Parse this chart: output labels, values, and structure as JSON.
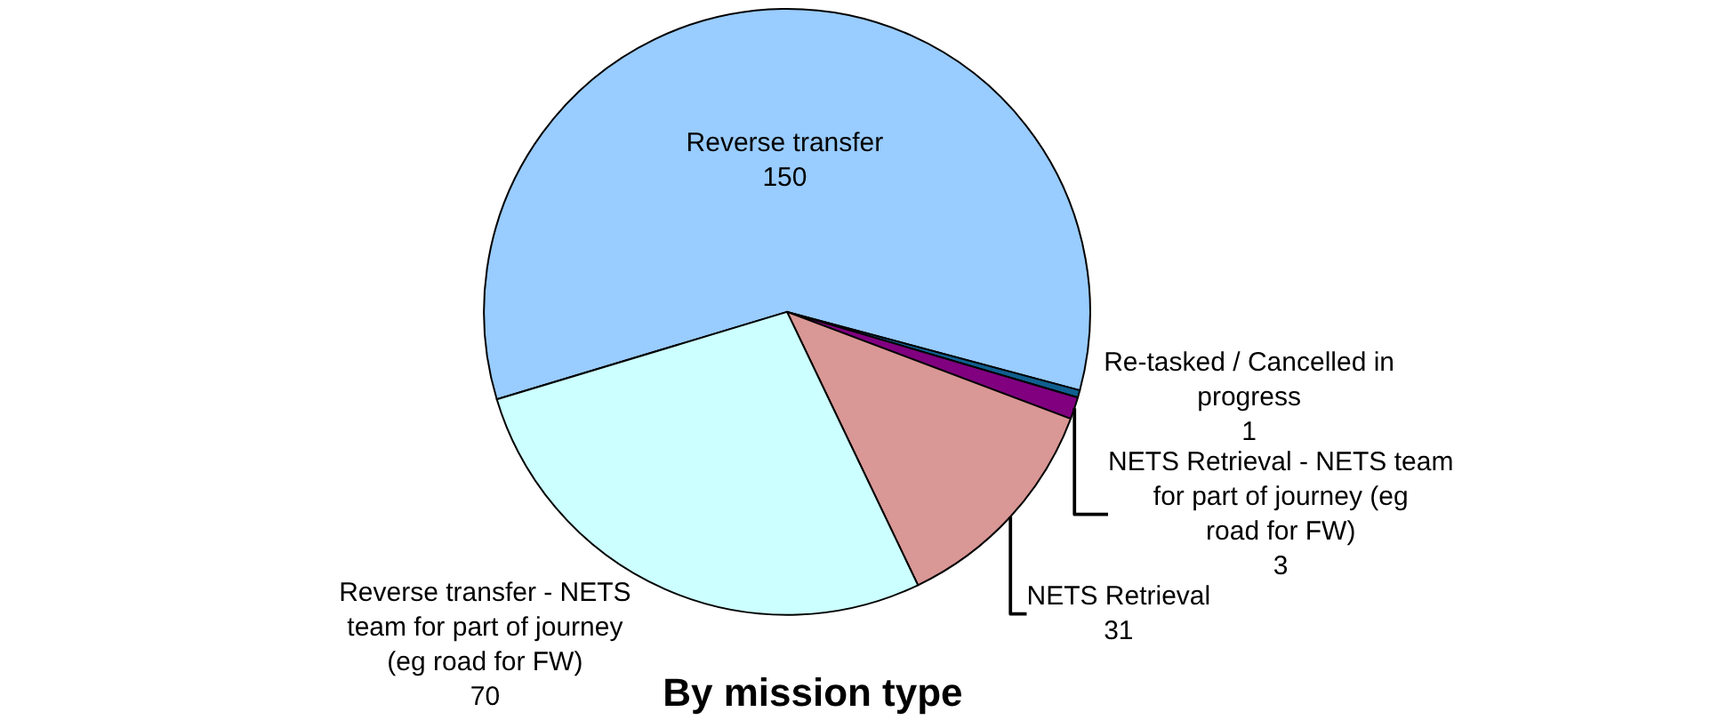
{
  "chart_data": {
    "type": "pie",
    "title": "By mission type",
    "categories": [
      "Reverse transfer",
      "Re-tasked / Cancelled in progress",
      "NETS Retrieval - NETS team for part of journey (eg road for FW)",
      "NETS Retrieval",
      "Reverse transfer - NETS team for part of journey (eg road for FW)"
    ],
    "values": [
      150,
      1,
      3,
      31,
      70
    ],
    "colors": [
      "#99ccff",
      "#0f5f8f",
      "#800080",
      "#d99795",
      "#ccffff"
    ],
    "data_labels": true,
    "legend": false
  }
}
